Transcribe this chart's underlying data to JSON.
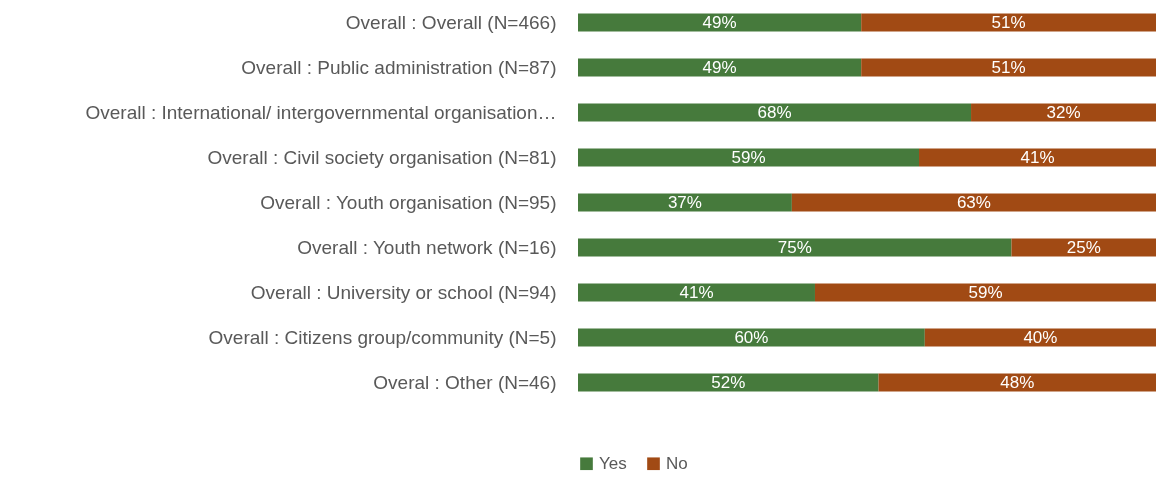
{
  "chart_data": {
    "type": "bar",
    "orientation": "horizontal",
    "stacked": true,
    "legend": "bottom",
    "categories": [
      "Overall : Overall (N=466)",
      "Overall : Public administration  (N=87)",
      "Overall : International/ intergovernmental organisation…",
      "Overall : Civil society organisation (N=81)",
      "Overall : Youth organisation (N=95)",
      "Overall : Youth network (N=16)",
      "Overall : University or school (N=94)",
      "Overall : Citizens group/community (N=5)",
      "Overal : Other (N=46)"
    ],
    "series": [
      {
        "name": "Yes",
        "color": "#467a3c",
        "values": [
          49,
          49,
          68,
          59,
          37,
          75,
          41,
          60,
          52
        ],
        "value_labels": [
          "49%",
          "49%",
          "68%",
          "59%",
          "37%",
          "75%",
          "41%",
          "60%",
          "52%"
        ]
      },
      {
        "name": "No",
        "color": "#a14a14",
        "values": [
          51,
          51,
          32,
          41,
          63,
          25,
          59,
          40,
          48
        ],
        "value_labels": [
          "51%",
          "51%",
          "32%",
          "41%",
          "63%",
          "25%",
          "59%",
          "40%",
          "48%"
        ]
      }
    ]
  }
}
